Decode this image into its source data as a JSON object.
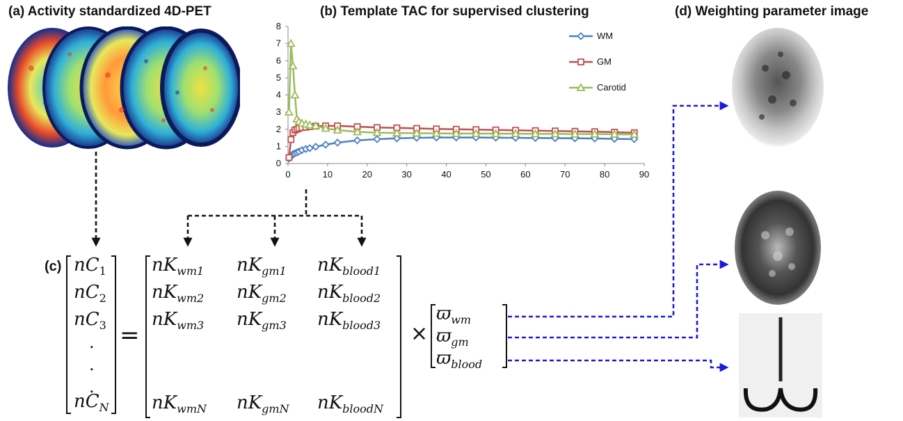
{
  "panels": {
    "a_title": "(a) Activity standardized 4D-PET",
    "b_title": "(b) Template TAC for supervised clustering",
    "c_label": "(c)",
    "d_title": "(d) Weighting parameter image"
  },
  "chart_data": {
    "type": "line",
    "title": "Template TAC for supervised clustering",
    "xlabel": "",
    "ylabel": "",
    "xlim": [
      0,
      90
    ],
    "ylim": [
      0,
      8
    ],
    "xticks": [
      0,
      10,
      20,
      30,
      40,
      50,
      60,
      70,
      80,
      90
    ],
    "yticks": [
      0,
      1,
      2,
      3,
      4,
      5,
      6,
      7,
      8
    ],
    "legend_position": "top-right",
    "grid": false,
    "x": [
      0.25,
      0.75,
      1.25,
      1.75,
      2.25,
      2.75,
      3.5,
      4.5,
      5.5,
      7,
      9.5,
      12.5,
      17.5,
      22.5,
      27.5,
      32.5,
      37.5,
      42.5,
      47.5,
      52.5,
      57.5,
      62.5,
      67.5,
      72.5,
      77.5,
      82.5,
      87.5
    ],
    "series": [
      {
        "name": "WM",
        "color": "#4a7fc1",
        "marker": "diamond",
        "values": [
          0.3,
          0.4,
          0.55,
          0.6,
          0.65,
          0.7,
          0.78,
          0.85,
          0.9,
          0.98,
          1.1,
          1.22,
          1.35,
          1.42,
          1.47,
          1.5,
          1.52,
          1.52,
          1.52,
          1.51,
          1.5,
          1.49,
          1.48,
          1.47,
          1.46,
          1.44,
          1.42
        ]
      },
      {
        "name": "GM",
        "color": "#c0504d",
        "marker": "square",
        "values": [
          0.35,
          1.4,
          1.8,
          1.95,
          2.0,
          2.05,
          2.1,
          2.12,
          2.15,
          2.18,
          2.2,
          2.2,
          2.15,
          2.1,
          2.08,
          2.05,
          2.02,
          2.0,
          1.98,
          1.96,
          1.94,
          1.92,
          1.9,
          1.88,
          1.86,
          1.83,
          1.8
        ]
      },
      {
        "name": "Carotid",
        "color": "#9bbb59",
        "marker": "triangle",
        "values": [
          3.0,
          7.0,
          5.7,
          4.0,
          2.6,
          2.45,
          2.35,
          2.3,
          2.25,
          2.2,
          2.05,
          1.95,
          1.85,
          1.8,
          1.78,
          1.77,
          1.76,
          1.75,
          1.75,
          1.74,
          1.74,
          1.73,
          1.73,
          1.72,
          1.72,
          1.71,
          1.7
        ]
      }
    ]
  },
  "equation": {
    "lhs": [
      "nC_1",
      "nC_2",
      "nC_3",
      ".",
      ".",
      ".",
      "nC_N"
    ],
    "equals": "=",
    "times": "×",
    "matrix_col_wm": [
      "nK_wm1",
      "nK_wm2",
      "nK_wm3",
      ".",
      ".",
      ".",
      "nK_wmN"
    ],
    "matrix_col_gm": [
      "nK_gm1",
      "nK_gm2",
      "nK_gm3",
      ".",
      ".",
      ".",
      "nK_gmN"
    ],
    "matrix_col_blood": [
      "nK_blood1",
      "nK_blood2",
      "nK_blood3",
      ".",
      ".",
      ".",
      "nK_bloodN"
    ],
    "weights": [
      "ϖ_wm",
      "ϖ_gm",
      "ϖ_blood"
    ]
  },
  "colors": {
    "arrow_black": "#111111",
    "arrow_blue": "#1a1adc"
  },
  "images": {
    "pet_stack": "pet-slices-image",
    "weight_images": [
      "wm-weight-image",
      "gm-weight-image",
      "blood-weight-image"
    ]
  }
}
